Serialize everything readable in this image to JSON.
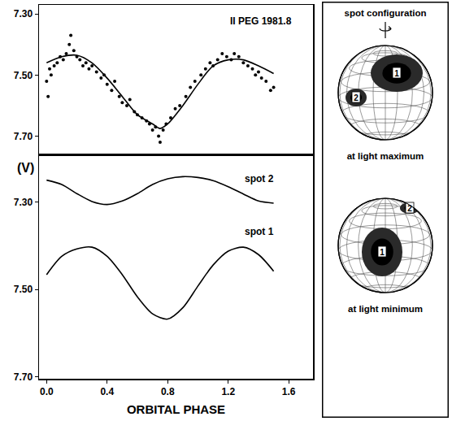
{
  "chart_data": [
    {
      "type": "scatter",
      "title": "II PEG 1981.8",
      "xlim": [
        -0.05,
        1.76
      ],
      "ylim": [
        7.76,
        7.27
      ],
      "yticks": [
        {
          "value": 7.3,
          "label": "7.30"
        },
        {
          "value": 7.5,
          "label": "7.50"
        },
        {
          "value": 7.7,
          "label": "7.70"
        }
      ],
      "tick_labels": "y",
      "grid": false,
      "series": [
        {
          "type": "scatter",
          "marker": "circle",
          "color": "#000000",
          "x": [
            0.0,
            0.01,
            0.02,
            0.03,
            0.05,
            0.07,
            0.09,
            0.11,
            0.13,
            0.15,
            0.16,
            0.18,
            0.2,
            0.22,
            0.24,
            0.26,
            0.28,
            0.3,
            0.33,
            0.36,
            0.38,
            0.4,
            0.43,
            0.45,
            0.48,
            0.5,
            0.53,
            0.55,
            0.58,
            0.6,
            0.63,
            0.66,
            0.68,
            0.7,
            0.72,
            0.74,
            0.75,
            0.77,
            0.79,
            0.82,
            0.85,
            0.88,
            0.92,
            0.95,
            0.98,
            1.02,
            1.05,
            1.08,
            1.1,
            1.13,
            1.16,
            1.19,
            1.22,
            1.24,
            1.27,
            1.3,
            1.33,
            1.36,
            1.38,
            1.4,
            1.42,
            1.45,
            1.48,
            1.5
          ],
          "values": [
            7.52,
            7.57,
            7.48,
            7.5,
            7.47,
            7.46,
            7.44,
            7.45,
            7.43,
            7.4,
            7.37,
            7.42,
            7.44,
            7.45,
            7.47,
            7.46,
            7.48,
            7.47,
            7.49,
            7.51,
            7.5,
            7.53,
            7.55,
            7.52,
            7.57,
            7.59,
            7.6,
            7.58,
            7.62,
            7.63,
            7.64,
            7.65,
            7.66,
            7.68,
            7.67,
            7.7,
            7.72,
            7.68,
            7.66,
            7.64,
            7.61,
            7.6,
            7.57,
            7.54,
            7.52,
            7.5,
            7.48,
            7.46,
            7.47,
            7.45,
            7.43,
            7.44,
            7.45,
            7.43,
            7.44,
            7.46,
            7.47,
            7.48,
            7.5,
            7.49,
            7.51,
            7.52,
            7.55,
            7.54
          ]
        },
        {
          "type": "line",
          "line_style": "solid",
          "color": "#000000",
          "x": [
            0.0,
            0.1,
            0.2,
            0.3,
            0.4,
            0.5,
            0.6,
            0.7,
            0.75,
            0.8,
            0.9,
            1.0,
            1.1,
            1.2,
            1.3,
            1.4,
            1.5
          ],
          "values": [
            7.46,
            7.44,
            7.435,
            7.46,
            7.51,
            7.57,
            7.63,
            7.66,
            7.675,
            7.66,
            7.6,
            7.53,
            7.47,
            7.45,
            7.45,
            7.47,
            7.495
          ]
        }
      ]
    },
    {
      "type": "line",
      "x_label": "ORBITAL PHASE",
      "y_label": "(V)",
      "xlim": [
        -0.05,
        1.76
      ],
      "ylim": [
        7.705,
        7.19
      ],
      "xticks": [
        {
          "value": 0,
          "label": "0.0"
        },
        0.4,
        0.8,
        1.2,
        1.6
      ],
      "yticks": [
        {
          "value": 7.3,
          "label": "7.30"
        },
        {
          "value": 7.5,
          "label": "7.50"
        },
        {
          "value": 7.7,
          "label": "7.70"
        }
      ],
      "grid": false,
      "series": [
        {
          "name": "spot 2",
          "color": "#000000",
          "line_style": "solid",
          "x": [
            0.0,
            0.1,
            0.2,
            0.3,
            0.4,
            0.5,
            0.6,
            0.7,
            0.8,
            0.9,
            1.0,
            1.1,
            1.2,
            1.3,
            1.4,
            1.5
          ],
          "values": [
            7.249,
            7.259,
            7.28,
            7.298,
            7.305,
            7.297,
            7.28,
            7.259,
            7.246,
            7.241,
            7.243,
            7.25,
            7.264,
            7.281,
            7.297,
            7.302
          ]
        },
        {
          "name": "spot 1",
          "color": "#000000",
          "line_style": "solid",
          "x": [
            0.0,
            0.1,
            0.2,
            0.3,
            0.4,
            0.5,
            0.6,
            0.7,
            0.8,
            0.9,
            1.0,
            1.1,
            1.2,
            1.3,
            1.4,
            1.5
          ],
          "values": [
            7.466,
            7.424,
            7.407,
            7.403,
            7.424,
            7.466,
            7.517,
            7.556,
            7.568,
            7.542,
            7.492,
            7.444,
            7.412,
            7.403,
            7.42,
            7.458
          ]
        }
      ]
    }
  ],
  "spot_configuration": {
    "title": "spot configuration",
    "panels": [
      {
        "caption": "at light maximum",
        "spots": [
          "1",
          "2"
        ]
      },
      {
        "caption": "at light minimum",
        "spots": [
          "1",
          "2"
        ]
      }
    ]
  }
}
